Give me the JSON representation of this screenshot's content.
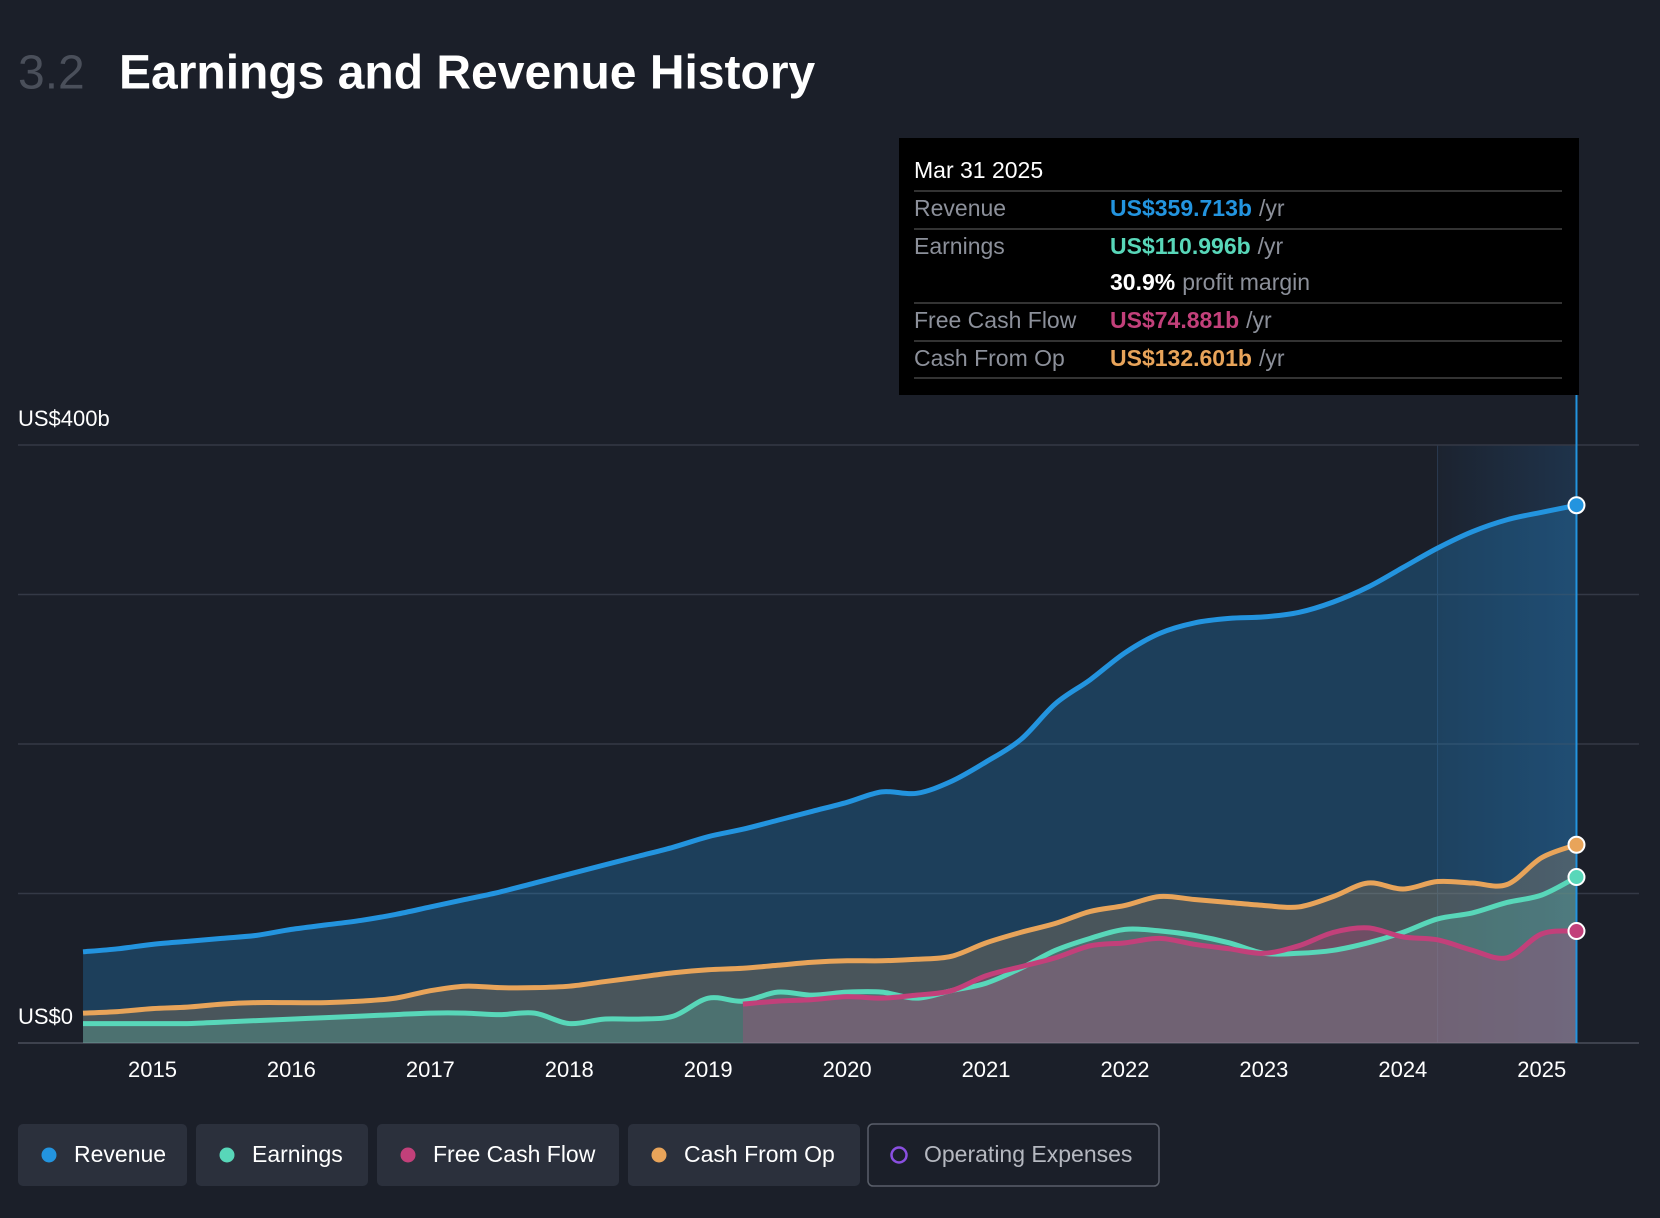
{
  "header": {
    "number": "3.2",
    "title": "Earnings and Revenue History"
  },
  "chart_data": {
    "type": "area",
    "x": [
      2014.5,
      2014.75,
      2015,
      2015.25,
      2015.5,
      2015.75,
      2016,
      2016.25,
      2016.5,
      2016.75,
      2017,
      2017.25,
      2017.5,
      2017.75,
      2018,
      2018.25,
      2018.5,
      2018.75,
      2019,
      2019.25,
      2019.5,
      2019.75,
      2020,
      2020.25,
      2020.5,
      2020.75,
      2021,
      2021.25,
      2021.5,
      2021.75,
      2022,
      2022.25,
      2022.5,
      2022.75,
      2023,
      2023.25,
      2023.5,
      2023.75,
      2024,
      2024.25,
      2024.5,
      2024.75,
      2025,
      2025.25
    ],
    "series": [
      {
        "name": "Revenue",
        "color": "#2394df",
        "values": [
          61,
          63,
          66,
          68,
          70,
          72,
          76,
          79,
          82,
          86,
          91,
          96,
          101,
          107,
          113,
          119,
          125,
          131,
          138,
          143,
          149,
          155,
          161,
          168,
          167,
          175,
          188,
          203,
          227,
          243,
          261,
          274,
          281,
          284,
          285,
          288,
          295,
          305,
          318,
          331,
          342,
          350,
          355,
          359.713
        ]
      },
      {
        "name": "Earnings",
        "color": "#58d7b9",
        "values": [
          13,
          13,
          13,
          13,
          14,
          15,
          16,
          17,
          18,
          19,
          20,
          20,
          19,
          20,
          13,
          16,
          16,
          18,
          30,
          28,
          34,
          32,
          34,
          34,
          30,
          35,
          40,
          50,
          62,
          70,
          76,
          75,
          72,
          67,
          60,
          60,
          62,
          67,
          74,
          83,
          87,
          94,
          99,
          110.996
        ]
      },
      {
        "name": "Free Cash Flow",
        "color": "#c2407a",
        "values": [
          null,
          null,
          null,
          null,
          null,
          null,
          null,
          null,
          null,
          null,
          null,
          null,
          null,
          null,
          null,
          null,
          null,
          null,
          null,
          26,
          28,
          29,
          31,
          30,
          32,
          35,
          45,
          51,
          57,
          65,
          67,
          70,
          66,
          63,
          60,
          65,
          74,
          77,
          71,
          69,
          62,
          57,
          73,
          74.881
        ]
      },
      {
        "name": "Cash From Op",
        "color": "#e8a45a",
        "values": [
          20,
          21,
          23,
          24,
          26,
          27,
          27,
          27,
          28,
          30,
          35,
          38,
          37,
          37,
          38,
          41,
          44,
          47,
          49,
          50,
          52,
          54,
          55,
          55,
          56,
          58,
          67,
          74,
          80,
          88,
          92,
          98,
          96,
          94,
          92,
          91,
          98,
          107,
          103,
          108,
          107,
          106,
          124,
          132.601
        ]
      },
      {
        "name": "Operating Expenses",
        "color": "#8a4fe0",
        "visible": false
      }
    ],
    "xlim": [
      2014.032,
      2025.7
    ],
    "xticks": [
      2015,
      2016,
      2017,
      2018,
      2019,
      2020,
      2021,
      2022,
      2023,
      2024,
      2025
    ],
    "ylim": [
      0,
      400
    ],
    "yticks": [
      {
        "value": 0,
        "label": "US$0"
      },
      {
        "value": 100,
        "label": null
      },
      {
        "value": 200,
        "label": null
      },
      {
        "value": 300,
        "label": null
      },
      {
        "value": 400,
        "label": "US$400b"
      }
    ],
    "grid": true,
    "highlight_x": [
      2024.25,
      2025.25
    ]
  },
  "tooltip": {
    "date": "Mar 31 2025",
    "rows": [
      {
        "label": "Revenue",
        "value": "US$359.713b",
        "unit": "/yr"
      },
      {
        "label": "Earnings",
        "value": "US$110.996b",
        "unit": "/yr"
      },
      {
        "label": "Free Cash Flow",
        "value": "US$74.881b",
        "unit": "/yr"
      },
      {
        "label": "Cash From Op",
        "value": "US$132.601b",
        "unit": "/yr"
      }
    ],
    "margin": {
      "value": "30.9%",
      "label": "profit margin"
    }
  }
}
